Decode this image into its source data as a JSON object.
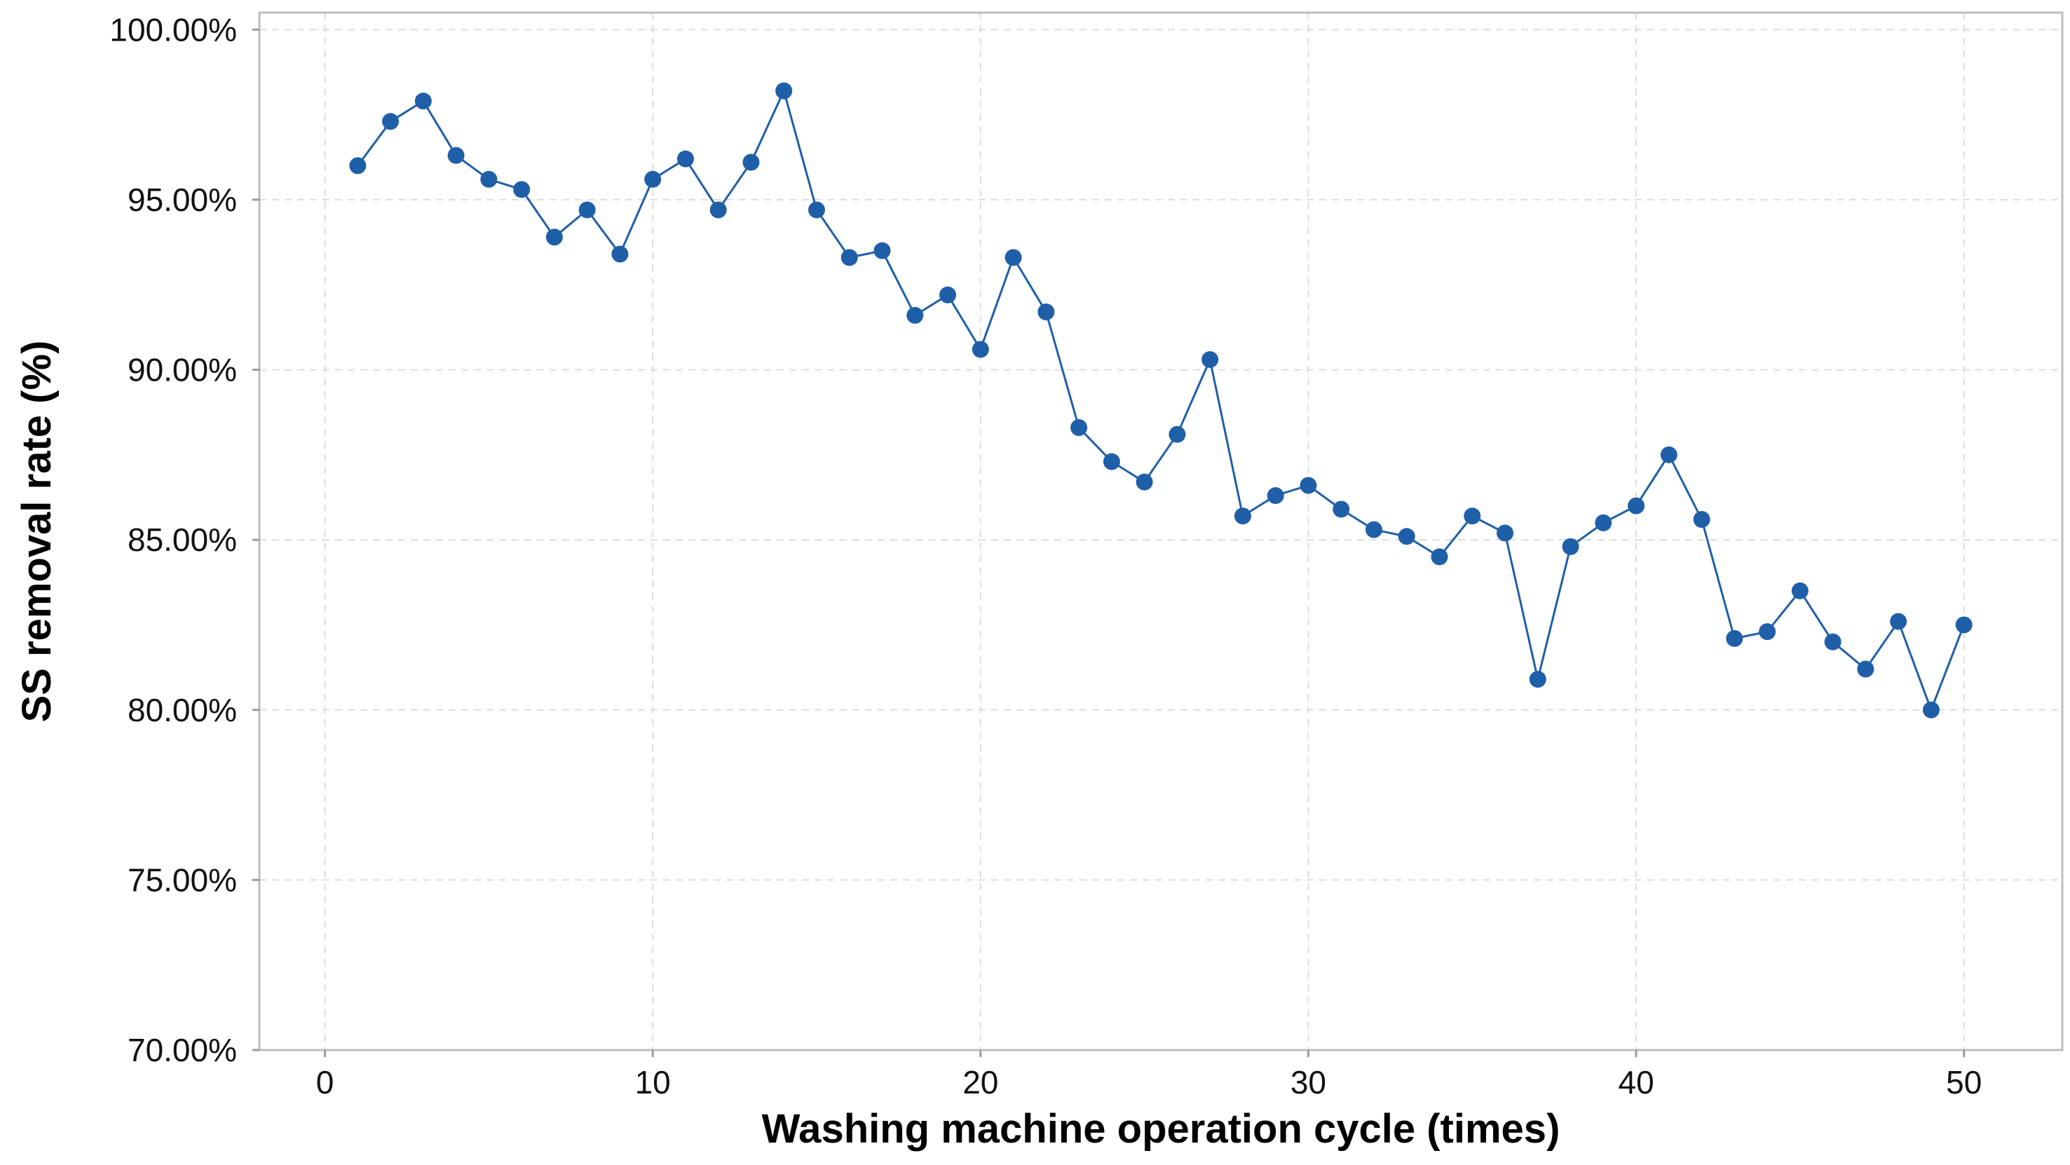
{
  "chart_data": {
    "type": "line",
    "title": "",
    "xlabel": "Washing machine operation cycle (times)",
    "ylabel": "SS removal rate (%)",
    "xlim": [
      -2,
      53
    ],
    "ylim": [
      70,
      100.5
    ],
    "x_ticks": [
      0,
      10,
      20,
      30,
      40,
      50
    ],
    "y_ticks": [
      70,
      75,
      80,
      85,
      90,
      95,
      100
    ],
    "x_tick_labels": [
      "0",
      "10",
      "20",
      "30",
      "40",
      "50"
    ],
    "y_tick_labels": [
      "70.00%",
      "75.00%",
      "80.00%",
      "85.00%",
      "90.00%",
      "95.00%",
      "100.00%"
    ],
    "grid": true,
    "legend": "none",
    "series": [
      {
        "color": "#1f5fa8",
        "marker": "circle",
        "x": [
          1,
          2,
          3,
          4,
          5,
          6,
          7,
          8,
          9,
          10,
          11,
          12,
          13,
          14,
          15,
          16,
          17,
          18,
          19,
          20,
          21,
          22,
          23,
          24,
          25,
          26,
          27,
          28,
          29,
          30,
          31,
          32,
          33,
          34,
          35,
          36,
          37,
          38,
          39,
          40,
          41,
          42,
          43,
          44,
          45,
          46,
          47,
          48,
          49,
          50
        ],
        "values": [
          96.0,
          97.3,
          97.9,
          96.3,
          95.6,
          95.3,
          93.9,
          94.7,
          93.4,
          95.6,
          96.2,
          94.7,
          96.1,
          98.2,
          94.7,
          93.3,
          93.5,
          91.6,
          92.2,
          90.6,
          93.3,
          91.7,
          88.3,
          87.3,
          86.7,
          88.1,
          90.3,
          85.7,
          86.3,
          86.6,
          85.9,
          85.3,
          85.1,
          84.5,
          85.7,
          85.2,
          80.9,
          84.8,
          85.5,
          86.0,
          87.5,
          85.6,
          82.1,
          82.3,
          83.5,
          82.0,
          81.2,
          82.6,
          80.0,
          82.5
        ]
      }
    ]
  }
}
